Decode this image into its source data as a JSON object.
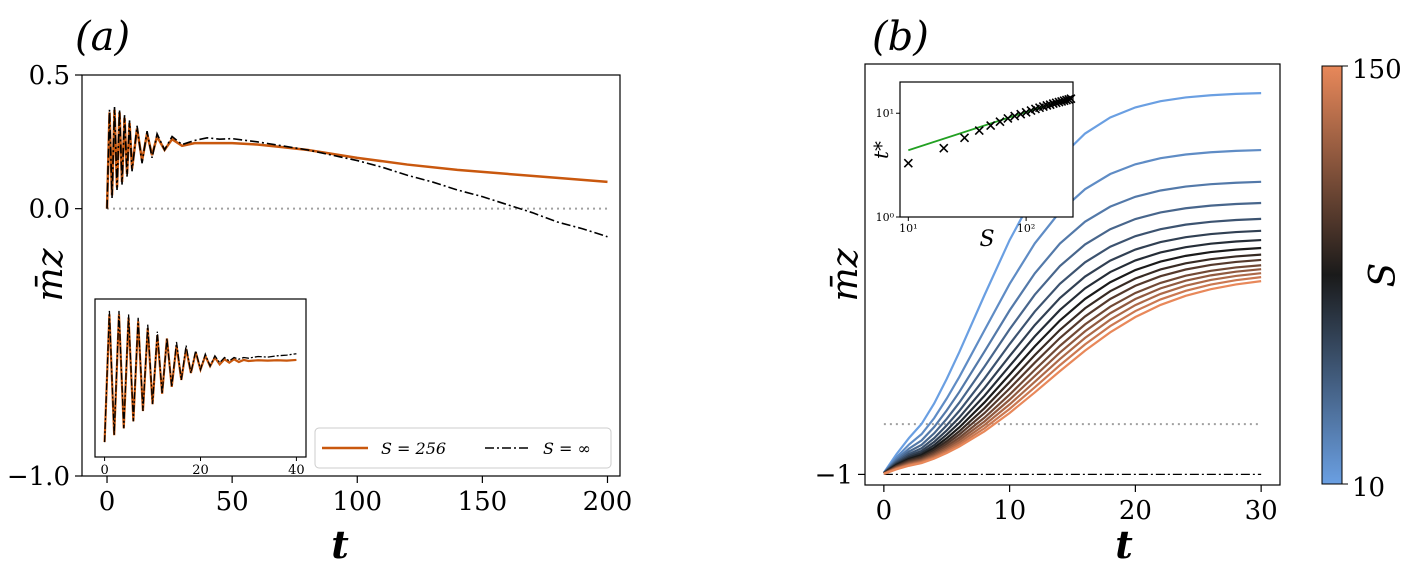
{
  "colors": {
    "orange": "#c9580e",
    "black": "#000000",
    "grey_dot": "#a0a0a0",
    "green": "#22a022",
    "cmap_low": "#6a9fe2",
    "cmap_mid": "#1a1a1a",
    "cmap_high": "#e8885a"
  },
  "chart_data": [
    {
      "type": "line",
      "panel_label": "(a)",
      "xlabel": "t",
      "ylabel": "m̄z",
      "xlim": [
        -10,
        205
      ],
      "ylim": [
        -1.0,
        0.5
      ],
      "xticks": [
        0,
        50,
        100,
        150,
        200
      ],
      "xtick_labels": [
        "0",
        "50",
        "100",
        "150",
        "200"
      ],
      "yticks": [
        0.5,
        0.0,
        -1.0
      ],
      "ytick_labels": [
        "0.5",
        "0.0",
        "−1.0"
      ],
      "reference_line": {
        "y": 0.0,
        "style": "dotted",
        "x": [
          0,
          200
        ]
      },
      "series": [
        {
          "name": "S = 256",
          "legend_label": "S = 256",
          "color": "orange",
          "style": "solid",
          "x": [
            0,
            1,
            2,
            3,
            4,
            5,
            6,
            7,
            8,
            9,
            10,
            12,
            14,
            16,
            18,
            20,
            23,
            26,
            30,
            35,
            40,
            50,
            60,
            70,
            80,
            90,
            100,
            120,
            140,
            160,
            180,
            200
          ],
          "y": [
            0.0,
            0.36,
            0.05,
            0.37,
            0.08,
            0.36,
            0.1,
            0.34,
            0.13,
            0.32,
            0.15,
            0.3,
            0.18,
            0.28,
            0.2,
            0.27,
            0.22,
            0.26,
            0.235,
            0.245,
            0.245,
            0.245,
            0.24,
            0.23,
            0.22,
            0.205,
            0.19,
            0.165,
            0.145,
            0.13,
            0.115,
            0.1
          ]
        },
        {
          "name": "S = ∞",
          "legend_label": "S = ∞",
          "color": "black",
          "style": "dashdot",
          "x": [
            0,
            1,
            2,
            3,
            4,
            5,
            6,
            7,
            8,
            9,
            10,
            12,
            14,
            16,
            18,
            20,
            23,
            26,
            30,
            35,
            40,
            45,
            50,
            60,
            70,
            80,
            90,
            100,
            110,
            120,
            130,
            140,
            150,
            160,
            170,
            180,
            190,
            200
          ],
          "y": [
            0.0,
            0.37,
            0.04,
            0.38,
            0.07,
            0.37,
            0.09,
            0.35,
            0.12,
            0.33,
            0.14,
            0.31,
            0.17,
            0.29,
            0.19,
            0.28,
            0.22,
            0.27,
            0.24,
            0.255,
            0.265,
            0.26,
            0.262,
            0.25,
            0.235,
            0.22,
            0.2,
            0.18,
            0.155,
            0.125,
            0.1,
            0.07,
            0.045,
            0.015,
            -0.015,
            -0.05,
            -0.075,
            -0.105
          ]
        }
      ],
      "legend": {
        "placement": "lower-right",
        "ncol": 2
      },
      "inset": {
        "placement": "lower-left",
        "xticks": [
          0,
          20,
          40
        ],
        "xtick_labels": [
          "0",
          "20",
          "40"
        ],
        "xlim": [
          -2,
          42
        ],
        "ylim": [
          -0.02,
          0.4
        ],
        "series_x": [
          0,
          1,
          2,
          3,
          4,
          5,
          6,
          7,
          8,
          9,
          10,
          11,
          12,
          13,
          14,
          15,
          16,
          17,
          18,
          19,
          20,
          21,
          22,
          23,
          24,
          25,
          26,
          27,
          28,
          29,
          30,
          32,
          34,
          36,
          38,
          40
        ],
        "series_orange": [
          0.0,
          0.37,
          0.02,
          0.37,
          0.04,
          0.36,
          0.06,
          0.35,
          0.09,
          0.33,
          0.11,
          0.31,
          0.14,
          0.3,
          0.16,
          0.28,
          0.18,
          0.27,
          0.2,
          0.26,
          0.21,
          0.25,
          0.22,
          0.245,
          0.225,
          0.24,
          0.23,
          0.24,
          0.232,
          0.238,
          0.235,
          0.237,
          0.236,
          0.237,
          0.236,
          0.238
        ],
        "series_black": [
          0.0,
          0.38,
          0.02,
          0.38,
          0.04,
          0.37,
          0.06,
          0.36,
          0.09,
          0.34,
          0.11,
          0.32,
          0.14,
          0.3,
          0.16,
          0.29,
          0.18,
          0.28,
          0.2,
          0.265,
          0.21,
          0.255,
          0.22,
          0.25,
          0.23,
          0.245,
          0.235,
          0.245,
          0.24,
          0.245,
          0.243,
          0.248,
          0.246,
          0.25,
          0.252,
          0.256
        ]
      }
    },
    {
      "type": "line",
      "panel_label": "(b)",
      "xlabel": "t",
      "ylabel": "m̄z",
      "xlim": [
        -1.5,
        31.5
      ],
      "ylim": [
        -1.08,
        2.1
      ],
      "xticks": [
        0,
        10,
        20,
        30
      ],
      "xtick_labels": [
        "0",
        "10",
        "20",
        "30"
      ],
      "yticks": [
        -1
      ],
      "ytick_labels": [
        "−1"
      ],
      "reference_lines": [
        {
          "y": -0.62,
          "style": "dotted",
          "x": [
            0,
            30
          ]
        },
        {
          "y": -1.0,
          "style": "dashdot",
          "x": [
            0,
            30
          ]
        }
      ],
      "series_family": {
        "parameter": "S",
        "S_values": [
          10,
          20,
          30,
          40,
          50,
          60,
          70,
          80,
          90,
          100,
          110,
          120,
          130,
          140,
          150
        ],
        "t": [
          0,
          1,
          2,
          3,
          4,
          5,
          6,
          8,
          10,
          12,
          14,
          16,
          18,
          20,
          22,
          24,
          26,
          28,
          30
        ],
        "final_values": [
          1.88,
          1.45,
          1.21,
          1.05,
          0.93,
          0.84,
          0.77,
          0.71,
          0.66,
          0.62,
          0.58,
          0.55,
          0.52,
          0.49,
          0.46
        ]
      },
      "colorbar": {
        "label": "S",
        "min_label": "10",
        "max_label": "150",
        "min": 10,
        "max": 150
      },
      "inset": {
        "xlabel": "S",
        "ylabel": "t*",
        "xscale": "log",
        "yscale": "log",
        "xlim": [
          8.5,
          250
        ],
        "ylim": [
          1,
          20
        ],
        "xtick_labels": [
          "10¹",
          "10²"
        ],
        "ytick_labels": [
          "10⁰",
          "10¹"
        ],
        "points_S": [
          10,
          20,
          30,
          40,
          50,
          60,
          70,
          80,
          90,
          100,
          110,
          120,
          130,
          140,
          150,
          160,
          170,
          180,
          190,
          200,
          210,
          220,
          230,
          240
        ],
        "points_t": [
          3.3,
          4.6,
          5.8,
          6.8,
          7.6,
          8.3,
          8.9,
          9.4,
          9.8,
          10.2,
          10.6,
          11.0,
          11.3,
          11.6,
          11.9,
          12.1,
          12.4,
          12.6,
          12.8,
          13.0,
          13.2,
          13.4,
          13.6,
          13.8
        ],
        "fit": {
          "S": [
            10,
            240
          ],
          "t": [
            4.4,
            14.2
          ],
          "color": "green"
        }
      }
    }
  ]
}
